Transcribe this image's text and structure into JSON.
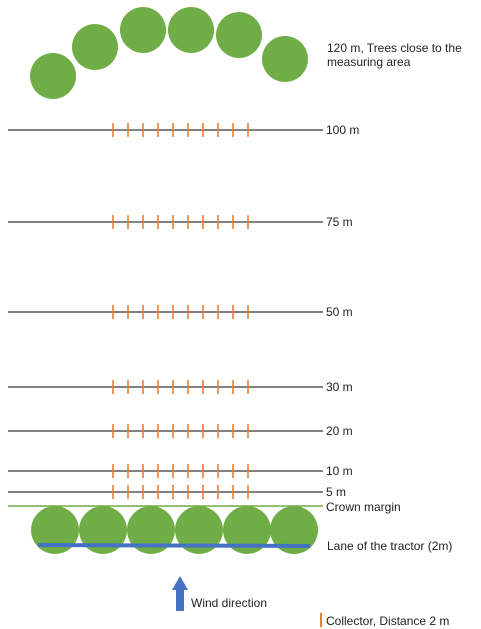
{
  "colors": {
    "tree": "#70ad47",
    "collector": "#ed7d31",
    "line": "#000000",
    "crown_margin": "#70ad47",
    "lane": "#4472c4",
    "arrow": "#4472c4"
  },
  "trees_label": {
    "line1": "120 m, Trees close to the",
    "line2": "measuring area"
  },
  "distance_lines": [
    {
      "label": "100 m"
    },
    {
      "label": "75 m"
    },
    {
      "label": "50 m"
    },
    {
      "label": "30 m"
    },
    {
      "label": "20 m"
    },
    {
      "label": "10 m"
    },
    {
      "label": "5 m"
    }
  ],
  "crown_margin_label": "Crown margin",
  "lane_label": "Lane of the tractor  (2m)",
  "wind_label": "Wind direction",
  "collector_legend_label": "Collector, Distance 2 m"
}
